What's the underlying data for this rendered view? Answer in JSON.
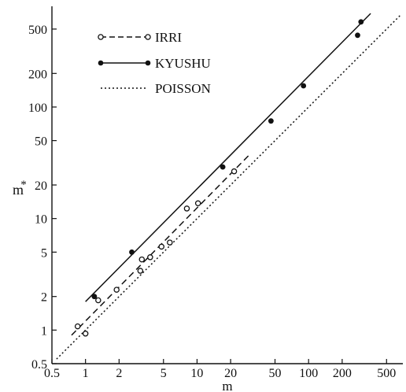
{
  "chart_data": {
    "type": "scatter",
    "title": "",
    "xlabel": "m",
    "ylabel": "m*",
    "x_scale": "log",
    "y_scale": "log",
    "xlim": [
      0.5,
      700
    ],
    "ylim": [
      0.5,
      800
    ],
    "grid": false,
    "legend_position": "top-left",
    "x_ticks": [
      0.5,
      1,
      2,
      5,
      10,
      20,
      50,
      100,
      200,
      500
    ],
    "x_tick_labels": [
      "0.5",
      "1",
      "2",
      "5",
      "10",
      "20",
      "50",
      "100",
      "200",
      "500"
    ],
    "y_ticks": [
      0.5,
      1,
      2,
      5,
      10,
      20,
      50,
      100,
      200,
      500
    ],
    "y_tick_labels": [
      "0.5",
      "1",
      "2",
      "5",
      "10",
      "20",
      "50",
      "100",
      "200",
      "500"
    ],
    "series": [
      {
        "name": "IRRI",
        "marker": "open-circle",
        "line_style": "dashed",
        "points": [
          {
            "x": 0.85,
            "y": 1.08
          },
          {
            "x": 1.0,
            "y": 0.93
          },
          {
            "x": 1.3,
            "y": 1.85
          },
          {
            "x": 1.9,
            "y": 2.3
          },
          {
            "x": 3.1,
            "y": 3.4
          },
          {
            "x": 3.2,
            "y": 4.3
          },
          {
            "x": 3.8,
            "y": 4.5
          },
          {
            "x": 4.8,
            "y": 5.6
          },
          {
            "x": 5.7,
            "y": 6.1
          },
          {
            "x": 8.1,
            "y": 12.3
          },
          {
            "x": 10.2,
            "y": 13.7
          },
          {
            "x": 21.5,
            "y": 26.5
          }
        ],
        "fit": {
          "x": [
            0.75,
            30
          ],
          "y": [
            0.9,
            38
          ]
        }
      },
      {
        "name": "KYUSHU",
        "marker": "filled-circle",
        "line_style": "solid",
        "points": [
          {
            "x": 1.2,
            "y": 2.0
          },
          {
            "x": 2.6,
            "y": 5.0
          },
          {
            "x": 17.0,
            "y": 29.0
          },
          {
            "x": 46.0,
            "y": 75.0
          },
          {
            "x": 90.0,
            "y": 155.0
          },
          {
            "x": 275.0,
            "y": 440.0
          },
          {
            "x": 295.0,
            "y": 580.0
          }
        ],
        "fit": {
          "x": [
            1.0,
            360
          ],
          "y": [
            1.8,
            690
          ]
        }
      },
      {
        "name": "POISSON",
        "marker": "none",
        "line_style": "dotted",
        "points": [],
        "fit": {
          "x": [
            0.55,
            660
          ],
          "y": [
            0.55,
            660
          ]
        }
      }
    ]
  }
}
